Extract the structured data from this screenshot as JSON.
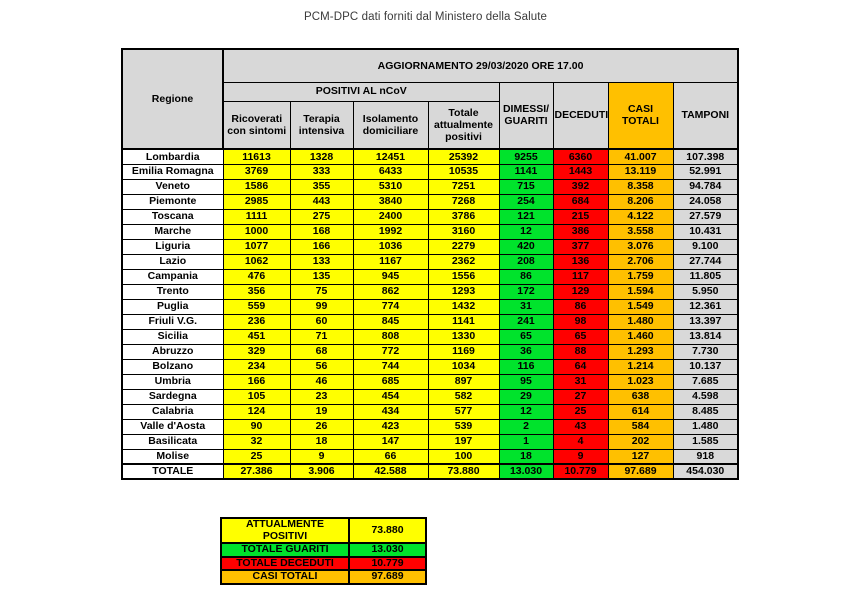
{
  "page_title": "PCM-DPC dati forniti dal Ministero della Salute",
  "colors": {
    "header_gray": "#D8D8D8",
    "cell_gray": "#D9D9D9",
    "yellow": "#FFFF00",
    "green": "#00E32C",
    "red": "#FF0000",
    "orange": "#FFC000"
  },
  "chart_data": {
    "type": "table",
    "title": "PCM-DPC dati forniti dal Ministero della Salute",
    "update_header": "AGGIORNAMENTO 29/03/2020 ORE 17.00",
    "region_header": "Regione",
    "group_header": "POSITIVI AL nCoV",
    "columns": [
      "Ricoverati con sintomi",
      "Terapia intensiva",
      "Isolamento domiciliare",
      "Totale attualmente positivi",
      "DIMESSI/ GUARITI",
      "DECEDUTI",
      "CASI TOTALI",
      "TAMPONI"
    ],
    "rows": [
      [
        "Lombardia",
        "11613",
        "1328",
        "12451",
        "25392",
        "9255",
        "6360",
        "41.007",
        "107.398"
      ],
      [
        "Emilia Romagna",
        "3769",
        "333",
        "6433",
        "10535",
        "1141",
        "1443",
        "13.119",
        "52.991"
      ],
      [
        "Veneto",
        "1586",
        "355",
        "5310",
        "7251",
        "715",
        "392",
        "8.358",
        "94.784"
      ],
      [
        "Piemonte",
        "2985",
        "443",
        "3840",
        "7268",
        "254",
        "684",
        "8.206",
        "24.058"
      ],
      [
        "Toscana",
        "1111",
        "275",
        "2400",
        "3786",
        "121",
        "215",
        "4.122",
        "27.579"
      ],
      [
        "Marche",
        "1000",
        "168",
        "1992",
        "3160",
        "12",
        "386",
        "3.558",
        "10.431"
      ],
      [
        "Liguria",
        "1077",
        "166",
        "1036",
        "2279",
        "420",
        "377",
        "3.076",
        "9.100"
      ],
      [
        "Lazio",
        "1062",
        "133",
        "1167",
        "2362",
        "208",
        "136",
        "2.706",
        "27.744"
      ],
      [
        "Campania",
        "476",
        "135",
        "945",
        "1556",
        "86",
        "117",
        "1.759",
        "11.805"
      ],
      [
        "Trento",
        "356",
        "75",
        "862",
        "1293",
        "172",
        "129",
        "1.594",
        "5.950"
      ],
      [
        "Puglia",
        "559",
        "99",
        "774",
        "1432",
        "31",
        "86",
        "1.549",
        "12.361"
      ],
      [
        "Friuli V.G.",
        "236",
        "60",
        "845",
        "1141",
        "241",
        "98",
        "1.480",
        "13.397"
      ],
      [
        "Sicilia",
        "451",
        "71",
        "808",
        "1330",
        "65",
        "65",
        "1.460",
        "13.814"
      ],
      [
        "Abruzzo",
        "329",
        "68",
        "772",
        "1169",
        "36",
        "88",
        "1.293",
        "7.730"
      ],
      [
        "Bolzano",
        "234",
        "56",
        "744",
        "1034",
        "116",
        "64",
        "1.214",
        "10.137"
      ],
      [
        "Umbria",
        "166",
        "46",
        "685",
        "897",
        "95",
        "31",
        "1.023",
        "7.685"
      ],
      [
        "Sardegna",
        "105",
        "23",
        "454",
        "582",
        "29",
        "27",
        "638",
        "4.598"
      ],
      [
        "Calabria",
        "124",
        "19",
        "434",
        "577",
        "12",
        "25",
        "614",
        "8.485"
      ],
      [
        "Valle d'Aosta",
        "90",
        "26",
        "423",
        "539",
        "2",
        "43",
        "584",
        "1.480"
      ],
      [
        "Basilicata",
        "32",
        "18",
        "147",
        "197",
        "1",
        "4",
        "202",
        "1.585"
      ],
      [
        "Molise",
        "25",
        "9",
        "66",
        "100",
        "18",
        "9",
        "127",
        "918"
      ]
    ],
    "total": [
      "TOTALE",
      "27.386",
      "3.906",
      "42.588",
      "73.880",
      "13.030",
      "10.779",
      "97.689",
      "454.030"
    ],
    "summary": [
      {
        "label": "ATTUALMENTE POSITIVI",
        "value": "73.880",
        "color": "#FFFF00"
      },
      {
        "label": "TOTALE GUARITI",
        "value": "13.030",
        "color": "#00E32C"
      },
      {
        "label": "TOTALE DECEDUTI",
        "value": "10.779",
        "color": "#FF0000"
      },
      {
        "label": "CASI TOTALI",
        "value": "97.689",
        "color": "#FFC000"
      }
    ]
  }
}
